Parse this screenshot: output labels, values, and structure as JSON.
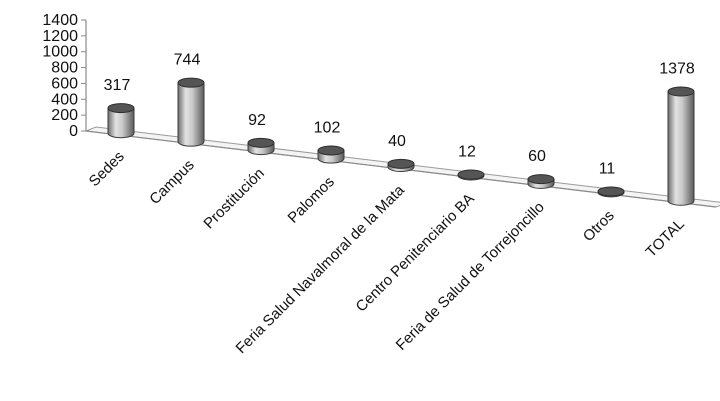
{
  "chart_data": {
    "type": "bar",
    "style": "3d-cylinder",
    "categories": [
      "Sedes",
      "Campus",
      "Prostitución",
      "Palomos",
      "Feria Salud Navalmoral de la Mata",
      "Centro Penitenciario BA",
      "Feria de Salud de Torrejoncillo",
      "Otros",
      "TOTAL"
    ],
    "values": [
      317,
      744,
      92,
      102,
      40,
      12,
      60,
      11,
      1378
    ],
    "ylim": [
      0,
      1400
    ],
    "yticks": [
      0,
      200,
      400,
      600,
      800,
      1000,
      1200,
      1400
    ],
    "grid": false,
    "legend": "none",
    "bar_color": "#b8b8b8",
    "title": "",
    "xlabel": "",
    "ylabel": ""
  }
}
